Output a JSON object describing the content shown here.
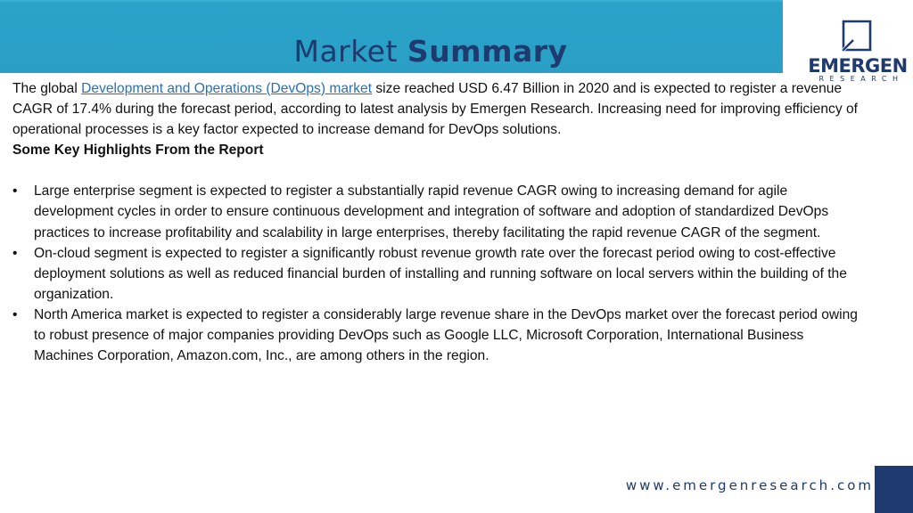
{
  "header": {
    "title_light": "Market",
    "title_bold": "Summary",
    "colors": {
      "banner": "#2aa3c9",
      "title": "#1f3a6e"
    }
  },
  "logo": {
    "word": "EMERGEN",
    "sub": "RESEARCH"
  },
  "intro": {
    "before": "The global ",
    "link": "Development and Operations (DevOps) market",
    "after": " size reached USD 6.47 Billion in 2020 and is expected to register a revenue CAGR of 17.4% during the forecast period, according to latest analysis by Emergen Research. Increasing need for improving efficiency of operational processes is a key factor expected to increase demand for DevOps solutions."
  },
  "highlights": {
    "heading": "Some Key Highlights From the Report",
    "items": [
      "Large enterprise segment is expected to register a substantially rapid revenue CAGR owing to increasing demand for agile development cycles in order to ensure continuous development and integration of software and adoption of standardized DevOps practices to increase profitability and scalability in large enterprises, thereby facilitating the rapid revenue CAGR of the segment.",
      "On-cloud segment is expected to register a significantly robust revenue growth rate over the forecast period owing to cost-effective deployment solutions as well as reduced financial burden of installing and running software on local servers within the building of the organization.",
      "North America market is expected to register a considerably large revenue share in the DevOps market over the forecast period owing to robust presence of major companies providing DevOps such as Google LLC, Microsoft Corporation, International Business Machines Corporation, Amazon.com, Inc., are among others in the region."
    ]
  },
  "footer": {
    "url": "www.emergenresearch.com"
  }
}
